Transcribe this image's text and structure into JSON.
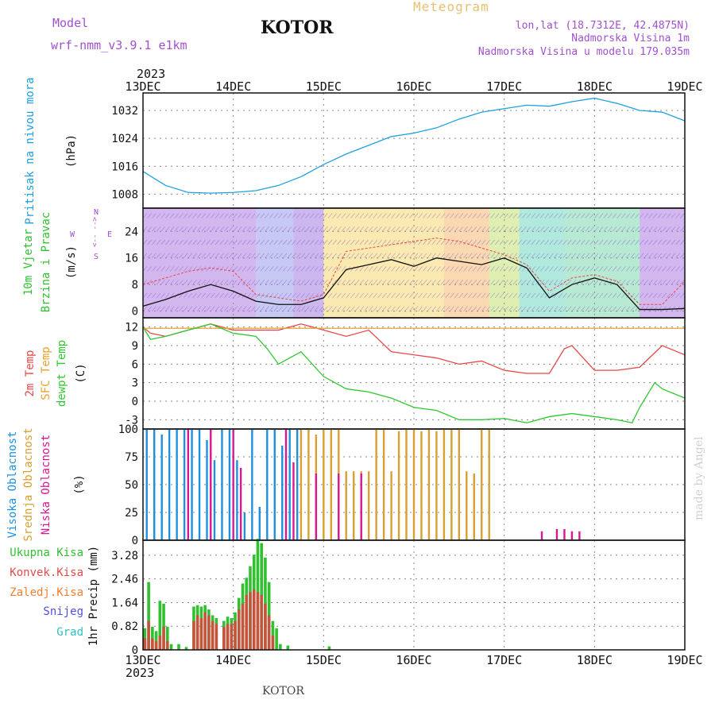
{
  "header": {
    "model_label": "Model",
    "model_name": "wrf-nmm_v3.9.1 e1km",
    "station_title": "KOTOR",
    "meteogram_label": "Meteogram",
    "lonlat": "lon,lat (18.7312E, 42.4875N)",
    "altitude": "Nadmorska Visina 1m",
    "model_altitude": "Nadmorska Visina u modelu 179.035m",
    "footer": "KOTOR",
    "credit": "made by Angel",
    "year_top": "2023",
    "year_bottom": "2023"
  },
  "colors": {
    "pressure": "#1ea0e0",
    "temp2m": "#e84848",
    "sfc": "#e8a030",
    "dewpt": "#30c830",
    "high_cloud": "#1e90e0",
    "mid_cloud": "#d8a030",
    "low_cloud": "#d81890",
    "total_precip": "#30c030",
    "conv_precip": "#e04040",
    "grid": "#888888"
  },
  "chart_data": {
    "type": "line",
    "x_axis": {
      "ticks": [
        "13DEC",
        "14DEC",
        "15DEC",
        "16DEC",
        "17DEC",
        "18DEC",
        "19DEC"
      ],
      "range": [
        0,
        144
      ],
      "unit": "hours"
    },
    "panels": [
      {
        "id": "pressure",
        "ylabel": [
          "Pritisak na nivou mora",
          "(hPa)"
        ],
        "yticks": [
          1008,
          1016,
          1024,
          1032
        ],
        "ylim": [
          1004,
          1037
        ],
        "series": [
          {
            "name": "pressure",
            "x": [
              0,
              6,
              12,
              18,
              24,
              30,
              36,
              42,
              48,
              54,
              60,
              66,
              72,
              78,
              84,
              90,
              96,
              102,
              108,
              114,
              120,
              126,
              132,
              138,
              144
            ],
            "values": [
              1014.5,
              1010.5,
              1008.5,
              1008.3,
              1008.5,
              1009,
              1010.5,
              1013,
              1016.5,
              1019.5,
              1022,
              1024.5,
              1025.5,
              1027,
              1029.5,
              1031.5,
              1032.5,
              1033.5,
              1033.2,
              1034.5,
              1035.5,
              1034,
              1032,
              1031.5,
              1029
            ]
          }
        ]
      },
      {
        "id": "wind",
        "ylabel": [
          "10m Vjetar",
          "Brzina i Pravac",
          "(m/s)"
        ],
        "compass": [
          "W",
          "<-- -->",
          "E",
          "N",
          "S"
        ],
        "yticks": [
          0,
          8,
          16,
          24
        ],
        "ylim": [
          -2,
          31
        ],
        "series": [
          {
            "name": "speed",
            "x": [
              0,
              6,
              12,
              18,
              24,
              30,
              36,
              42,
              48,
              54,
              60,
              66,
              72,
              78,
              84,
              90,
              96,
              102,
              108,
              114,
              120,
              126,
              132,
              138,
              144
            ],
            "values": [
              1.5,
              3.5,
              6,
              8,
              6,
              3,
              2,
              2,
              4,
              12.5,
              14,
              15.5,
              13.5,
              16,
              15,
              14,
              16,
              13,
              4,
              8,
              10,
              8,
              0.5,
              0.5,
              0.8
            ]
          },
          {
            "name": "gust",
            "x": [
              0,
              6,
              12,
              18,
              24,
              30,
              36,
              42,
              48,
              54,
              60,
              66,
              72,
              78,
              84,
              90,
              96,
              102,
              108,
              114,
              120,
              126,
              132,
              138,
              144
            ],
            "values": [
              8,
              10,
              12,
              13,
              12,
              5,
              4,
              3,
              5,
              18,
              19,
              20,
              21,
              22,
              21,
              19,
              17,
              14,
              6,
              10,
              11,
              9,
              2,
              2,
              9
            ]
          }
        ]
      },
      {
        "id": "temp",
        "ylabel": [
          "2m Temp",
          "SFC Temp",
          "dewpt Temp",
          "(C)"
        ],
        "yticks": [
          -3,
          0,
          3,
          6,
          9,
          12
        ],
        "ylim": [
          -4.5,
          13.5
        ],
        "series": [
          {
            "name": "2m",
            "x": [
              0,
              2,
              6,
              12,
              18,
              24,
              30,
              36,
              42,
              48,
              54,
              60,
              66,
              72,
              78,
              84,
              90,
              96,
              102,
              108,
              112,
              114,
              120,
              126,
              132,
              138,
              144
            ],
            "values": [
              12,
              11,
              10.5,
              11.5,
              12.5,
              11.5,
              11.5,
              11.5,
              12.5,
              11.5,
              10.5,
              11.5,
              8,
              7.5,
              7,
              6,
              6.5,
              5,
              4.5,
              4.5,
              8.5,
              9,
              5,
              5,
              5.5,
              9,
              7.5
            ]
          },
          {
            "name": "sfc",
            "x": [
              0,
              144
            ],
            "values": [
              11.8,
              11.8
            ]
          },
          {
            "name": "dewpt",
            "x": [
              0,
              2,
              6,
              12,
              18,
              24,
              30,
              33,
              36,
              42,
              48,
              54,
              60,
              66,
              72,
              78,
              84,
              90,
              96,
              102,
              108,
              114,
              120,
              126,
              130,
              132,
              136,
              138,
              144
            ],
            "values": [
              12,
              10,
              10.5,
              11.5,
              12.5,
              11,
              10.5,
              8.5,
              6,
              8,
              4,
              2,
              1.5,
              0.5,
              -1,
              -1.5,
              -3,
              -3,
              -2.8,
              -3.5,
              -2.5,
              -2,
              -2.5,
              -3,
              -3.5,
              -1,
              3,
              2,
              0.5
            ]
          }
        ]
      },
      {
        "id": "cloud",
        "ylabel": [
          "Visoka Oblacnost",
          "Srednja Oblacnost",
          "Niska Oblacnost",
          "(%)"
        ],
        "yticks": [
          0,
          25,
          50,
          75,
          100
        ],
        "ylim": [
          0,
          100
        ],
        "series": [
          {
            "name": "high",
            "x": [
              1,
              3,
              5,
              7,
              9,
              11,
              13,
              15,
              17,
              19,
              21,
              23,
              25,
              27,
              29,
              31,
              33,
              35,
              37,
              39,
              41
            ],
            "values": [
              100,
              100,
              95,
              100,
              100,
              100,
              100,
              100,
              90,
              72,
              100,
              100,
              72,
              25,
              100,
              30,
              100,
              100,
              85,
              100,
              100
            ]
          },
          {
            "name": "mid",
            "x": [
              42,
              44,
              46,
              48,
              50,
              52,
              54,
              56,
              58,
              60,
              62,
              64,
              66,
              68,
              70,
              72,
              74,
              76,
              78,
              80,
              82,
              84,
              86,
              88,
              90,
              92
            ],
            "values": [
              100,
              100,
              95,
              100,
              100,
              100,
              62,
              62,
              62,
              62,
              100,
              100,
              62,
              98,
              100,
              100,
              98,
              100,
              98,
              100,
              100,
              100,
              62,
              60,
              100,
              100
            ]
          },
          {
            "name": "low",
            "x": [
              12,
              18,
              24,
              26,
              38,
              40,
              46,
              52,
              58,
              106,
              110,
              112,
              114,
              116
            ],
            "values": [
              100,
              100,
              100,
              65,
              100,
              70,
              60,
              60,
              60,
              8,
              10,
              10,
              8,
              8
            ]
          }
        ]
      },
      {
        "id": "precip",
        "ylabel": [
          "Ukupna Kisa",
          "Konvek.Kisa",
          "Zaledj.Kisa",
          "Snijeg",
          "Grad",
          "1hr Precip (mm)"
        ],
        "yticks": [
          0,
          0.82,
          1.64,
          2.46,
          3.28
        ],
        "ylim": [
          0,
          3.8
        ],
        "series": [
          {
            "name": "total",
            "x": [
              0.5,
              1.5,
              2.5,
              3.5,
              4.5,
              5.5,
              6.5,
              7.5,
              9.5,
              11.5,
              13.5,
              14.5,
              15.5,
              16.5,
              17.5,
              18.5,
              19.5,
              21.5,
              22.5,
              23.5,
              24.5,
              25.5,
              26.5,
              27.5,
              28.5,
              29.5,
              30.5,
              31.5,
              32.5,
              33.5,
              34.5,
              35.5,
              36.5,
              38.5,
              49.5
            ],
            "values": [
              0.75,
              2.35,
              0.8,
              0.65,
              1.7,
              1.6,
              0.8,
              0.2,
              0.2,
              0.1,
              1.5,
              1.55,
              1.5,
              1.55,
              1.4,
              1.2,
              1.1,
              1.0,
              1.15,
              1.1,
              1.3,
              1.8,
              2.3,
              2.5,
              2.9,
              3.3,
              3.85,
              3.7,
              3.2,
              2.35,
              1.0,
              0.75,
              0.2,
              0.15,
              0.12
            ]
          },
          {
            "name": "convective",
            "x": [
              0.5,
              1.5,
              2.5,
              3.5,
              4.5,
              5.5,
              6.5,
              13.5,
              14.5,
              15.5,
              16.5,
              17.5,
              18.5,
              19.5,
              21.5,
              22.5,
              23.5,
              24.5,
              25.5,
              26.5,
              27.5,
              28.5,
              29.5,
              30.5,
              31.5,
              32.5,
              33.5,
              34.5
            ],
            "values": [
              0.4,
              1.0,
              0.4,
              0.3,
              0.5,
              0.8,
              0.3,
              1.0,
              1.2,
              1.1,
              1.3,
              1.2,
              1.0,
              0.9,
              0.8,
              0.9,
              0.9,
              1.0,
              1.4,
              1.6,
              1.9,
              2.0,
              2.1,
              2.0,
              1.9,
              1.6,
              1.2,
              0.5
            ]
          }
        ]
      }
    ]
  }
}
